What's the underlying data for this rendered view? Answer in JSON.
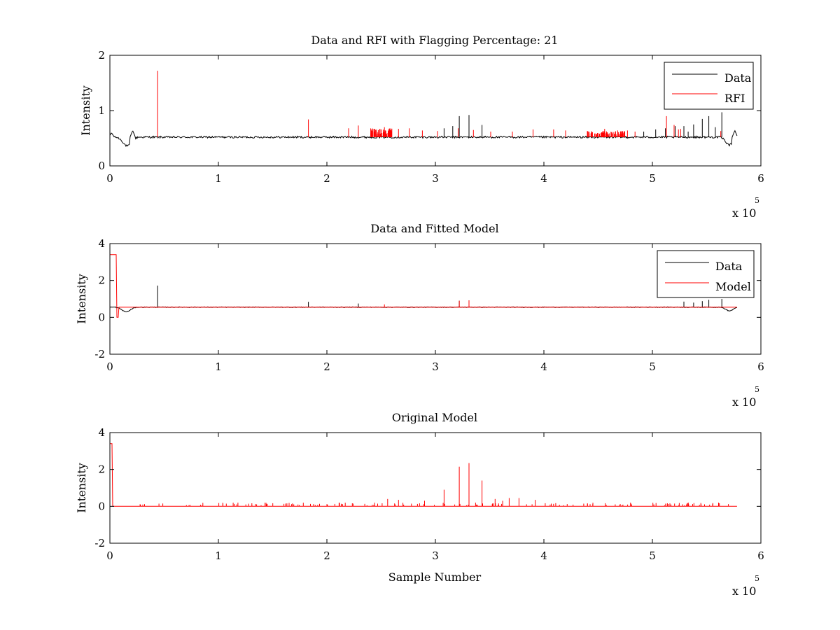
{
  "colors": {
    "data": "#000000",
    "rfi": "#ff0000",
    "axes": "#000000",
    "background": "#ffffff"
  },
  "chart_data": [
    {
      "type": "line",
      "title": "Data and RFI with Flagging Percentage: 21",
      "xlabel": "",
      "ylabel": "Intensity",
      "xlim": [
        0,
        600000
      ],
      "ylim": [
        0,
        2
      ],
      "xticks": [
        0,
        1,
        2,
        3,
        4,
        5,
        6
      ],
      "yticks": [
        0,
        1,
        2
      ],
      "x_multiplier": {
        "base": "x 10",
        "exponent": "5"
      },
      "legend": {
        "position": "top-right",
        "entries": [
          {
            "label": "Data",
            "color": "#000000"
          },
          {
            "label": "RFI",
            "color": "#ff0000"
          }
        ]
      },
      "series": [
        {
          "name": "Data",
          "color": "#000000",
          "baseline": 0.52,
          "x_end": 578000,
          "dips": [
            {
              "x": 16000,
              "width": 8000,
              "depth": 0.16
            },
            {
              "x": 571000,
              "width": 7000,
              "depth": 0.14
            }
          ],
          "bumps": [
            {
              "x": 1500,
              "value": 0.6
            },
            {
              "x": 21000,
              "value": 0.64
            },
            {
              "x": 576000,
              "value": 0.64
            }
          ],
          "spikes": [
            [
              322000,
              0.9
            ],
            [
              331000,
              0.92
            ],
            [
              343000,
              0.74
            ],
            [
              316000,
              0.72
            ],
            [
              308000,
              0.68
            ],
            [
              492000,
              0.62
            ],
            [
              503000,
              0.66
            ],
            [
              512000,
              0.68
            ],
            [
              521000,
              0.72
            ],
            [
              529000,
              0.72
            ],
            [
              538000,
              0.75
            ],
            [
              546000,
              0.85
            ],
            [
              552000,
              0.9
            ],
            [
              564000,
              0.97
            ],
            [
              558000,
              0.7
            ],
            [
              533000,
              0.62
            ]
          ]
        },
        {
          "name": "RFI",
          "color": "#ff0000",
          "spikes": [
            [
              44000,
              1.72
            ],
            [
              183000,
              0.84
            ],
            [
              220000,
              0.68
            ],
            [
              229000,
              0.73
            ],
            [
              244000,
              0.67
            ],
            [
              253000,
              0.7
            ],
            [
              266000,
              0.67
            ],
            [
              276000,
              0.68
            ],
            [
              288000,
              0.64
            ],
            [
              302000,
              0.63
            ],
            [
              321000,
              0.68
            ],
            [
              335000,
              0.65
            ],
            [
              351000,
              0.62
            ],
            [
              371000,
              0.62
            ],
            [
              390000,
              0.66
            ],
            [
              409000,
              0.66
            ],
            [
              420000,
              0.64
            ],
            [
              440000,
              0.63
            ],
            [
              456000,
              0.67
            ],
            [
              468000,
              0.64
            ],
            [
              477000,
              0.64
            ],
            [
              484000,
              0.62
            ],
            [
              513000,
              0.9
            ],
            [
              520000,
              0.74
            ],
            [
              524000,
              0.66
            ],
            [
              526000,
              0.67
            ],
            [
              563000,
              0.63
            ]
          ],
          "dense_ranges": [
            [
              240000,
              260000,
              0.05,
              0.16
            ],
            [
              440000,
              475000,
              0.05,
              0.11
            ]
          ]
        }
      ]
    },
    {
      "type": "line",
      "title": "Data and Fitted Model",
      "xlabel": "",
      "ylabel": "Intensity",
      "xlim": [
        0,
        600000
      ],
      "ylim": [
        -2,
        4
      ],
      "xticks": [
        0,
        1,
        2,
        3,
        4,
        5,
        6
      ],
      "yticks": [
        -2,
        0,
        2,
        4
      ],
      "x_multiplier": {
        "base": "x 10",
        "exponent": "5"
      },
      "legend": {
        "position": "top-right",
        "entries": [
          {
            "label": "Data",
            "color": "#000000"
          },
          {
            "label": "Model",
            "color": "#ff0000"
          }
        ]
      },
      "series": [
        {
          "name": "Data",
          "color": "#000000",
          "baseline": 0.55,
          "x_end": 578000,
          "dips": [
            {
              "x": 15000,
              "width": 8000,
              "depth": 0.25
            },
            {
              "x": 571000,
              "width": 7000,
              "depth": 0.2
            }
          ],
          "spikes": [
            [
              44000,
              1.72
            ],
            [
              183000,
              0.84
            ],
            [
              229000,
              0.75
            ],
            [
              322000,
              0.9
            ],
            [
              331000,
              0.92
            ],
            [
              529000,
              0.85
            ],
            [
              546000,
              0.88
            ],
            [
              552000,
              0.95
            ],
            [
              564000,
              1.0
            ],
            [
              538000,
              0.8
            ]
          ]
        },
        {
          "name": "Model",
          "color": "#ff0000",
          "baseline": 0.55,
          "x_end": 578000,
          "step": {
            "x_start": 0,
            "x_end": 6000,
            "value": 3.4
          },
          "zero_segment": {
            "x_start": 6000,
            "x_end": 8000,
            "value": 0.0
          },
          "spikes": [
            [
              322000,
              0.9
            ],
            [
              331000,
              0.92
            ],
            [
              253000,
              0.7
            ]
          ]
        }
      ]
    },
    {
      "type": "line",
      "title": "Original Model",
      "xlabel": "Sample Number",
      "ylabel": "Intensity",
      "xlim": [
        0,
        600000
      ],
      "ylim": [
        -2,
        4
      ],
      "xticks": [
        0,
        1,
        2,
        3,
        4,
        5,
        6
      ],
      "yticks": [
        -2,
        0,
        2,
        4
      ],
      "x_multiplier": {
        "base": "x 10",
        "exponent": "5"
      },
      "series": [
        {
          "name": "Model",
          "color": "#ff0000",
          "baseline": 0.0,
          "x_end": 578000,
          "step": {
            "x_start": 0,
            "x_end": 2500,
            "value": 3.4
          },
          "spikes": [
            [
              308000,
              0.9
            ],
            [
              322000,
              2.15
            ],
            [
              331000,
              2.35
            ],
            [
              343000,
              1.4
            ],
            [
              256000,
              0.4
            ],
            [
              266000,
              0.35
            ],
            [
              290000,
              0.3
            ],
            [
              355000,
              0.4
            ],
            [
              368000,
              0.45
            ],
            [
              377000,
              0.45
            ],
            [
              362000,
              0.3
            ],
            [
              392000,
              0.35
            ],
            [
              118000,
              0.2
            ],
            [
              143000,
              0.2
            ],
            [
              162000,
              0.15
            ],
            [
              244000,
              0.2
            ]
          ]
        }
      ]
    }
  ]
}
